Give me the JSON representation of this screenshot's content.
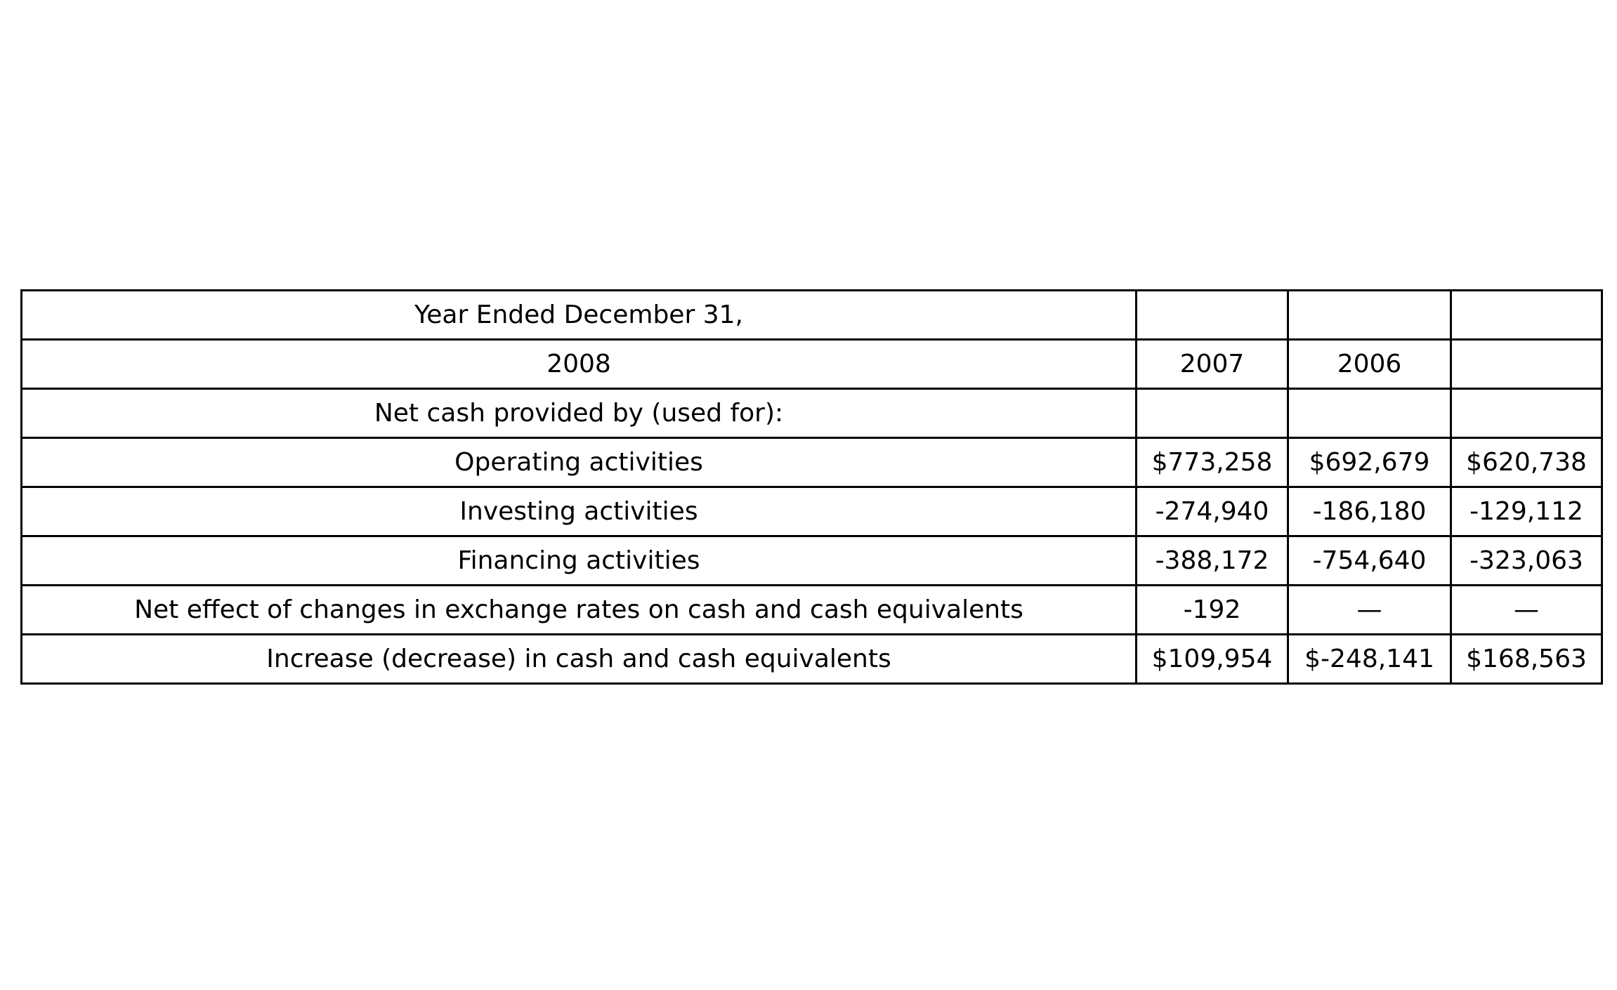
{
  "table": {
    "rows": [
      [
        "Year Ended December 31,",
        "",
        "",
        ""
      ],
      [
        "2008",
        "2007",
        "2006",
        ""
      ],
      [
        "Net cash provided by (used for):",
        "",
        "",
        ""
      ],
      [
        "Operating activities",
        "$773,258",
        "$692,679",
        "$620,738"
      ],
      [
        "Investing activities",
        "-274,940",
        "-186,180",
        "-129,112"
      ],
      [
        "Financing activities",
        "-388,172",
        "-754,640",
        "-323,063"
      ],
      [
        "Net effect of changes in exchange rates on cash and cash equivalents",
        "-192",
        "—",
        "—"
      ],
      [
        "Increase (decrease) in cash and cash equivalents",
        "$109,954",
        "$-248,141",
        "$168,563"
      ]
    ]
  }
}
